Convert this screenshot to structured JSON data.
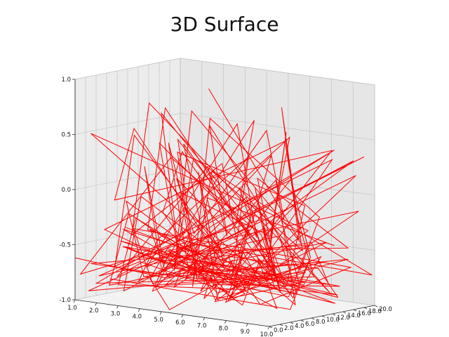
{
  "chart_data": {
    "type": "line",
    "title": "3D Surface",
    "plot_style": "3d wireframe",
    "grid": true,
    "colors": {
      "line": "#ff0000",
      "pane_back": "#e6e6e6",
      "pane_side": "#ececec",
      "grid": "#bdbdbd"
    },
    "z_ticks": [
      "-1.0",
      "-0.5",
      "0.0",
      "0.5",
      "1.0"
    ],
    "x_ticks": [
      "1.0",
      "2.0",
      "3.0",
      "4.0",
      "5.0",
      "6.0",
      "7.0",
      "8.0",
      "9.0",
      "10.0"
    ],
    "y_ticks": [
      "0.0",
      "2.0",
      "4.0",
      "6.0",
      "8.0",
      "10.0",
      "12.0",
      "14.0",
      "16.0",
      "18.0",
      "20.0"
    ],
    "zlim": [
      -1.0,
      1.0
    ],
    "xlim": [
      1.0,
      10.0
    ],
    "ylim": [
      0.0,
      20.0
    ],
    "series": [
      {
        "values": [
          -0.62,
          -0.85,
          -0.48,
          -0.92,
          -0.71,
          -0.55,
          -0.88,
          -0.3,
          -0.77,
          -0.95,
          -0.66,
          -0.41,
          -0.83,
          -0.59,
          -0.9,
          -0.74,
          -0.35,
          -0.81,
          -0.97,
          -0.52,
          -0.68,
          -0.86,
          -0.45,
          -0.79,
          -0.93,
          -0.61,
          -0.72,
          -0.38,
          -0.89,
          -0.57,
          -0.84,
          -0.64,
          -0.91,
          -0.5,
          -0.76,
          -0.98,
          -0.43,
          -0.7,
          -0.87,
          -0.6
        ]
      },
      {
        "values": [
          -0.7,
          -0.35,
          -0.82,
          -0.15,
          -0.66,
          -0.9,
          -0.25,
          -0.74,
          -0.58,
          -0.88,
          -0.05,
          -0.69,
          -0.8,
          -0.44,
          -0.93,
          -0.2,
          -0.75,
          -0.62,
          -0.86,
          -0.33,
          -0.78,
          -0.55,
          -0.91,
          -0.12,
          -0.68,
          -0.84,
          -0.4,
          -0.73,
          -0.95,
          -0.28,
          -0.81,
          -0.5,
          -0.64,
          -0.89,
          -0.18,
          -0.72,
          -0.6,
          -0.85,
          -0.36,
          -0.77
        ]
      },
      {
        "values": [
          -0.8,
          0.35,
          -0.72,
          0.55,
          -0.6,
          -0.2,
          0.4,
          -0.85,
          0.1,
          -0.45,
          0.7,
          -0.66,
          -0.1,
          0.5,
          -0.88,
          0.25,
          -0.52,
          0.62,
          -0.35,
          -0.78,
          0.45,
          -0.15,
          -0.7,
          0.3,
          -0.9,
          0.05,
          -0.4,
          0.58,
          -0.62,
          -0.25,
          0.38,
          -0.82,
          0.15,
          -0.55,
          0.66,
          -0.3,
          -0.75,
          0.2,
          -0.48,
          -0.68
        ]
      },
      {
        "values": [
          -0.4,
          -0.75,
          0.2,
          -0.88,
          -0.3,
          0.48,
          -0.65,
          -0.92,
          0.05,
          -0.58,
          -0.8,
          0.3,
          -0.45,
          -0.7,
          0.15,
          -0.9,
          -0.35,
          0.42,
          -0.62,
          -0.85,
          -0.1,
          -0.76,
          0.25,
          -0.5,
          -0.94,
          -0.2,
          0.35,
          -0.68,
          -0.82,
          -0.05,
          -0.55,
          0.18,
          -0.88,
          -0.42,
          0.28,
          -0.72,
          -0.6,
          -0.15,
          -0.86,
          -0.38
        ]
      },
      {
        "values": [
          0.92,
          -0.5,
          0.85,
          -0.3,
          0.6,
          -0.7,
          0.4,
          -0.2,
          0.75,
          -0.55,
          0.1,
          -0.8,
          0.55,
          -0.4,
          0.3,
          -0.65,
          0.8,
          -0.25,
          0.45,
          -0.9,
          0.2,
          -0.6,
          0.65,
          -0.1,
          0.35,
          -0.75,
          0.5,
          -0.45,
          0.15,
          -0.85,
          0.7,
          -0.35,
          0.25,
          -0.6,
          0.4,
          -0.15,
          0.58,
          -0.72,
          0.05,
          -0.5
        ]
      },
      {
        "values": [
          -0.88,
          -0.6,
          -0.95,
          -0.7,
          -0.82,
          -0.52,
          -0.9,
          -0.65,
          -0.78,
          -0.98,
          -0.58,
          -0.84,
          -0.72,
          -0.93,
          -0.62,
          -0.86,
          -0.55,
          -0.91,
          -0.68,
          -0.8,
          -0.96,
          -0.63,
          -0.87,
          -0.74,
          -0.59,
          -0.92,
          -0.7,
          -0.83,
          -0.57,
          -0.94,
          -0.66,
          -0.89,
          -0.76,
          -0.61,
          -0.97,
          -0.73,
          -0.85,
          -0.64,
          -0.9,
          -0.79
        ]
      }
    ]
  }
}
